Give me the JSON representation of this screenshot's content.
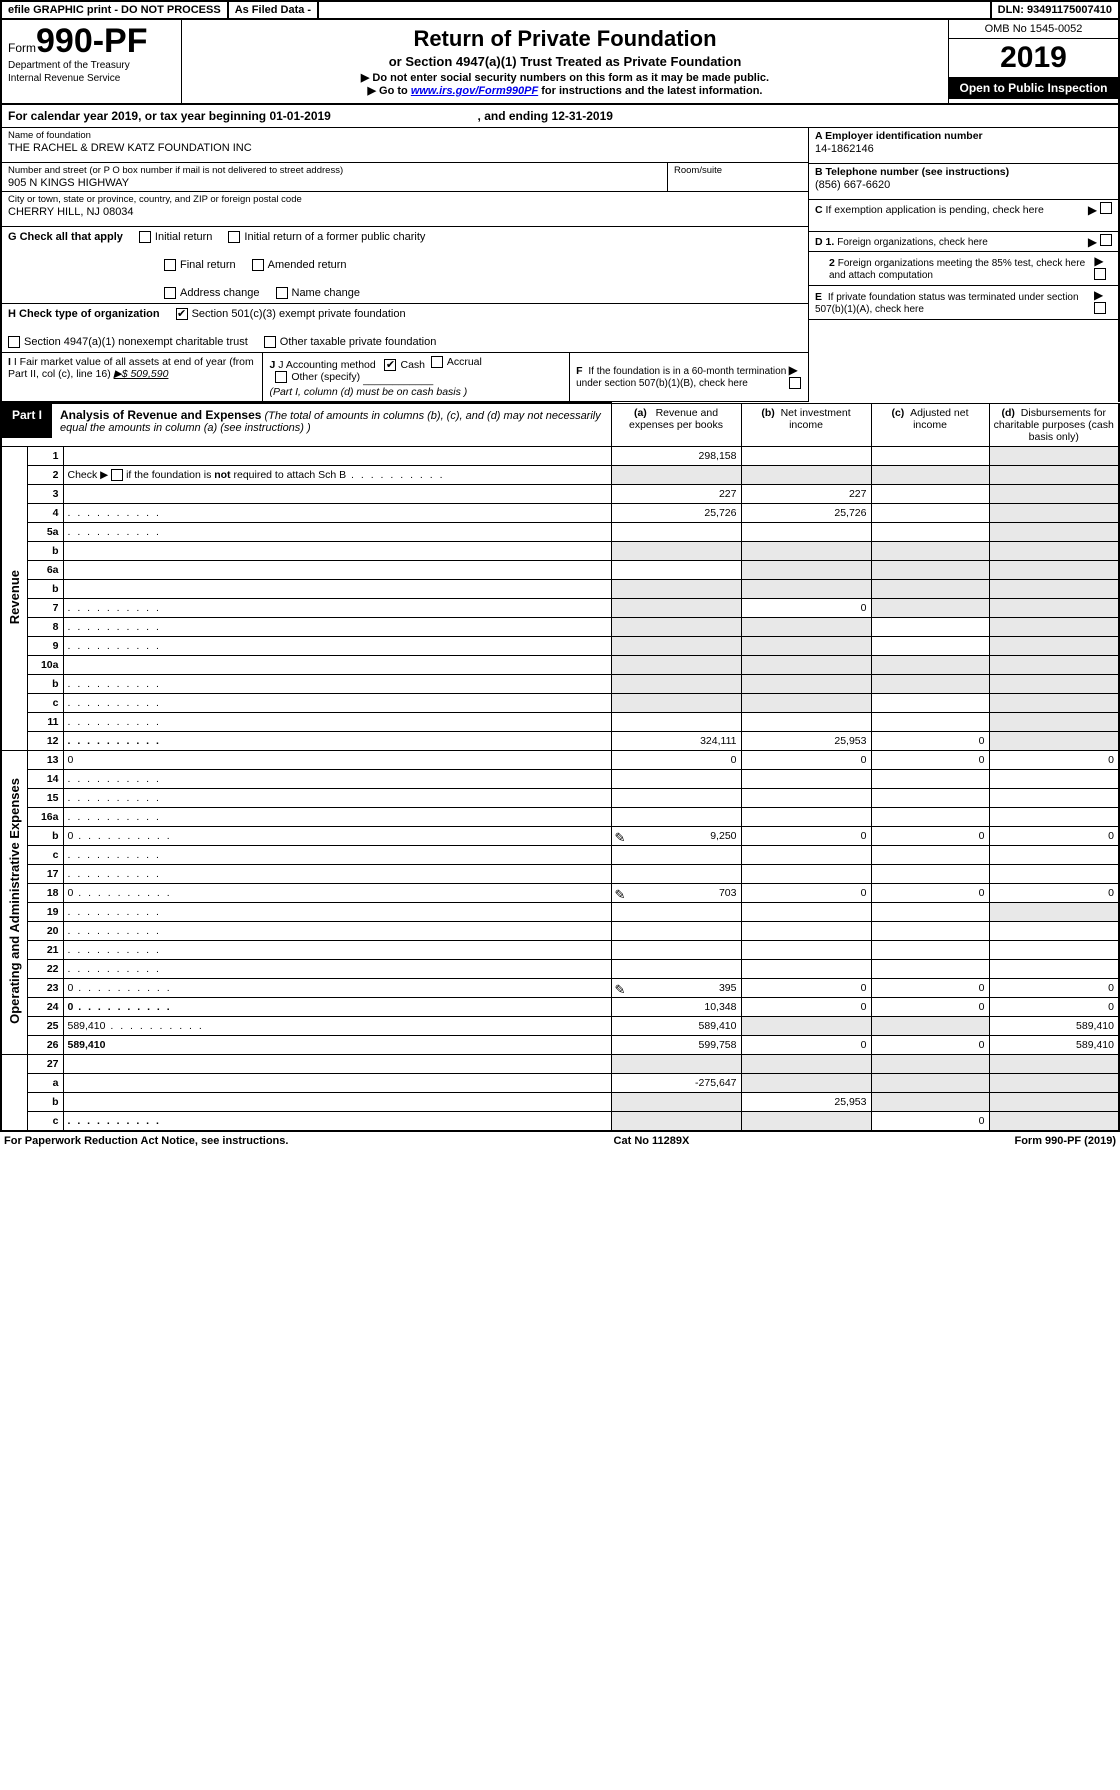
{
  "topbar": {
    "efile": "efile GRAPHIC print - DO NOT PROCESS",
    "asfiled": "As Filed Data -",
    "dln": "DLN: 93491175007410"
  },
  "header": {
    "form_prefix": "Form",
    "form_no": "990-PF",
    "dept1": "Department of the Treasury",
    "dept2": "Internal Revenue Service",
    "title": "Return of Private Foundation",
    "sub1": "or Section 4947(a)(1) Trust Treated as Private Foundation",
    "sub2": "▶ Do not enter social security numbers on this form as it may be made public.",
    "sub3_pre": "▶ Go to ",
    "sub3_link": "www.irs.gov/Form990PF",
    "sub3_post": " for instructions and the latest information.",
    "omb": "OMB No 1545-0052",
    "year": "2019",
    "open": "Open to Public Inspection"
  },
  "calyear": {
    "text_a": "For calendar year 2019, or tax year beginning ",
    "begin": "01-01-2019",
    "text_b": " , and ending ",
    "end": "12-31-2019"
  },
  "entity": {
    "name_label": "Name of foundation",
    "name": "THE RACHEL & DREW KATZ FOUNDATION INC",
    "addr_label": "Number and street (or P O  box number if mail is not delivered to street address)",
    "addr": "905 N KINGS HIGHWAY",
    "room_label": "Room/suite",
    "room": "",
    "city_label": "City or town, state or province, country, and ZIP or foreign postal code",
    "city": "CHERRY HILL, NJ  08034",
    "a_label": "A Employer identification number",
    "a_val": "14-1862146",
    "b_label": "B Telephone number (see instructions)",
    "b_val": "(856) 667-6620",
    "c_label": "C If exemption application is pending, check here"
  },
  "checks": {
    "g_label": "G Check all that apply",
    "g_opts": [
      "Initial return",
      "Initial return of a former public charity",
      "Final return",
      "Amended return",
      "Address change",
      "Name change"
    ],
    "h_label": "H Check type of organization",
    "h_1": "Section 501(c)(3) exempt private foundation",
    "h_2": "Section 4947(a)(1) nonexempt charitable trust",
    "h_3": "Other taxable private foundation",
    "d_label": "D 1. Foreign organizations, check here",
    "d2_label": "2 Foreign organizations meeting the 85% test, check here and attach computation",
    "e_label": "E  If private foundation status was terminated under section 507(b)(1)(A), check here",
    "f_label": "F  If the foundation is in a 60-month termination under section 507(b)(1)(B), check here"
  },
  "fmv": {
    "i_label": "I Fair market value of all assets at end of year (from Part II, col  (c), line 16)",
    "i_val": "▶$  509,590",
    "j_label": "J Accounting method",
    "j_cash": "Cash",
    "j_accrual": "Accrual",
    "j_other": "Other (specify)",
    "j_note": "(Part I, column (d) must be on cash basis )"
  },
  "part1": {
    "label": "Part I",
    "title": "Analysis of Revenue and Expenses",
    "note": " (The total of amounts in columns (b), (c), and (d) may not necessarily equal the amounts in column (a) (see instructions) )",
    "col_a": "(a)   Revenue and expenses per books",
    "col_b": "(b)  Net investment income",
    "col_c": "(c)  Adjusted net income",
    "col_d": "(d)  Disbursements for charitable purposes (cash basis only)",
    "vert_rev": "Revenue",
    "vert_exp": "Operating and Administrative Expenses"
  },
  "rows_rev": [
    {
      "n": "1",
      "d": "",
      "a": "298,158",
      "b": "",
      "c": "",
      "shade_d": true
    },
    {
      "n": "2",
      "d": "",
      "dots": true,
      "a": "",
      "b": "",
      "c": "",
      "shade_all": true,
      "not_bold": "not"
    },
    {
      "n": "3",
      "d": "",
      "a": "227",
      "b": "227",
      "c": "",
      "shade_d": true
    },
    {
      "n": "4",
      "d": "",
      "dots": true,
      "a": "25,726",
      "b": "25,726",
      "c": "",
      "shade_d": true
    },
    {
      "n": "5a",
      "d": "",
      "dots": true,
      "a": "",
      "b": "",
      "c": "",
      "shade_d": true
    },
    {
      "n": "b",
      "d": "",
      "a": "",
      "b": "",
      "c": "",
      "shade_abcd": true
    },
    {
      "n": "6a",
      "d": "",
      "a": "",
      "b": "",
      "c": "",
      "shade_bcd": true
    },
    {
      "n": "b",
      "d": "",
      "a": "",
      "b": "",
      "c": "",
      "shade_abcd": true
    },
    {
      "n": "7",
      "d": "",
      "dots": true,
      "a": "",
      "b": "0",
      "c": "",
      "shade_a": true,
      "shade_cd": true
    },
    {
      "n": "8",
      "d": "",
      "dots": true,
      "a": "",
      "b": "",
      "c": "",
      "shade_ab": true,
      "shade_d": true
    },
    {
      "n": "9",
      "d": "",
      "dots": true,
      "a": "",
      "b": "",
      "c": "",
      "shade_ab": true,
      "shade_d": true
    },
    {
      "n": "10a",
      "d": "",
      "a": "",
      "b": "",
      "c": "",
      "shade_abcd": true
    },
    {
      "n": "b",
      "d": "",
      "dots": true,
      "a": "",
      "b": "",
      "c": "",
      "shade_abcd": true
    },
    {
      "n": "c",
      "d": "",
      "dots": true,
      "a": "",
      "b": "",
      "c": "",
      "shade_ab": true,
      "shade_d": true
    },
    {
      "n": "11",
      "d": "",
      "dots": true,
      "a": "",
      "b": "",
      "c": "",
      "shade_d": true
    },
    {
      "n": "12",
      "d": "",
      "dots": true,
      "bold": true,
      "a": "324,111",
      "b": "25,953",
      "c": "0",
      "shade_d": true
    }
  ],
  "rows_exp": [
    {
      "n": "13",
      "d": "0",
      "a": "0",
      "b": "0",
      "c": "0"
    },
    {
      "n": "14",
      "d": "",
      "dots": true,
      "a": "",
      "b": "",
      "c": ""
    },
    {
      "n": "15",
      "d": "",
      "dots": true,
      "a": "",
      "b": "",
      "c": ""
    },
    {
      "n": "16a",
      "d": "",
      "dots": true,
      "a": "",
      "b": "",
      "c": ""
    },
    {
      "n": "b",
      "d": "0",
      "dots": true,
      "icon": true,
      "a": "9,250",
      "b": "0",
      "c": "0"
    },
    {
      "n": "c",
      "d": "",
      "dots": true,
      "a": "",
      "b": "",
      "c": ""
    },
    {
      "n": "17",
      "d": "",
      "dots": true,
      "a": "",
      "b": "",
      "c": ""
    },
    {
      "n": "18",
      "d": "0",
      "dots": true,
      "icon": true,
      "a": "703",
      "b": "0",
      "c": "0"
    },
    {
      "n": "19",
      "d": "",
      "dots": true,
      "a": "",
      "b": "",
      "c": "",
      "shade_d": true
    },
    {
      "n": "20",
      "d": "",
      "dots": true,
      "a": "",
      "b": "",
      "c": ""
    },
    {
      "n": "21",
      "d": "",
      "dots": true,
      "a": "",
      "b": "",
      "c": ""
    },
    {
      "n": "22",
      "d": "",
      "dots": true,
      "a": "",
      "b": "",
      "c": ""
    },
    {
      "n": "23",
      "d": "0",
      "dots": true,
      "icon": true,
      "a": "395",
      "b": "0",
      "c": "0"
    },
    {
      "n": "24",
      "d": "0",
      "dots": true,
      "bold": true,
      "a": "10,348",
      "b": "0",
      "c": "0"
    },
    {
      "n": "25",
      "d": "589,410",
      "dots": true,
      "a": "589,410",
      "b": "",
      "c": "",
      "shade_bc": true
    },
    {
      "n": "26",
      "d": "589,410",
      "bold": true,
      "a": "599,758",
      "b": "0",
      "c": "0"
    }
  ],
  "rows_end": [
    {
      "n": "27",
      "d": "",
      "a": "",
      "b": "",
      "c": "",
      "shade_abcd": true
    },
    {
      "n": "a",
      "d": "",
      "bold": true,
      "a": "-275,647",
      "b": "",
      "c": "",
      "shade_bcd": true
    },
    {
      "n": "b",
      "d": "",
      "bold": true,
      "a": "",
      "b": "25,953",
      "c": "",
      "shade_a": true,
      "shade_cd": true
    },
    {
      "n": "c",
      "d": "",
      "bold": true,
      "dots": true,
      "a": "",
      "b": "",
      "c": "0",
      "shade_ab": true,
      "shade_d": true
    }
  ],
  "footer": {
    "left": "For Paperwork Reduction Act Notice, see instructions.",
    "mid": "Cat  No  11289X",
    "right": "Form 990-PF (2019)"
  }
}
